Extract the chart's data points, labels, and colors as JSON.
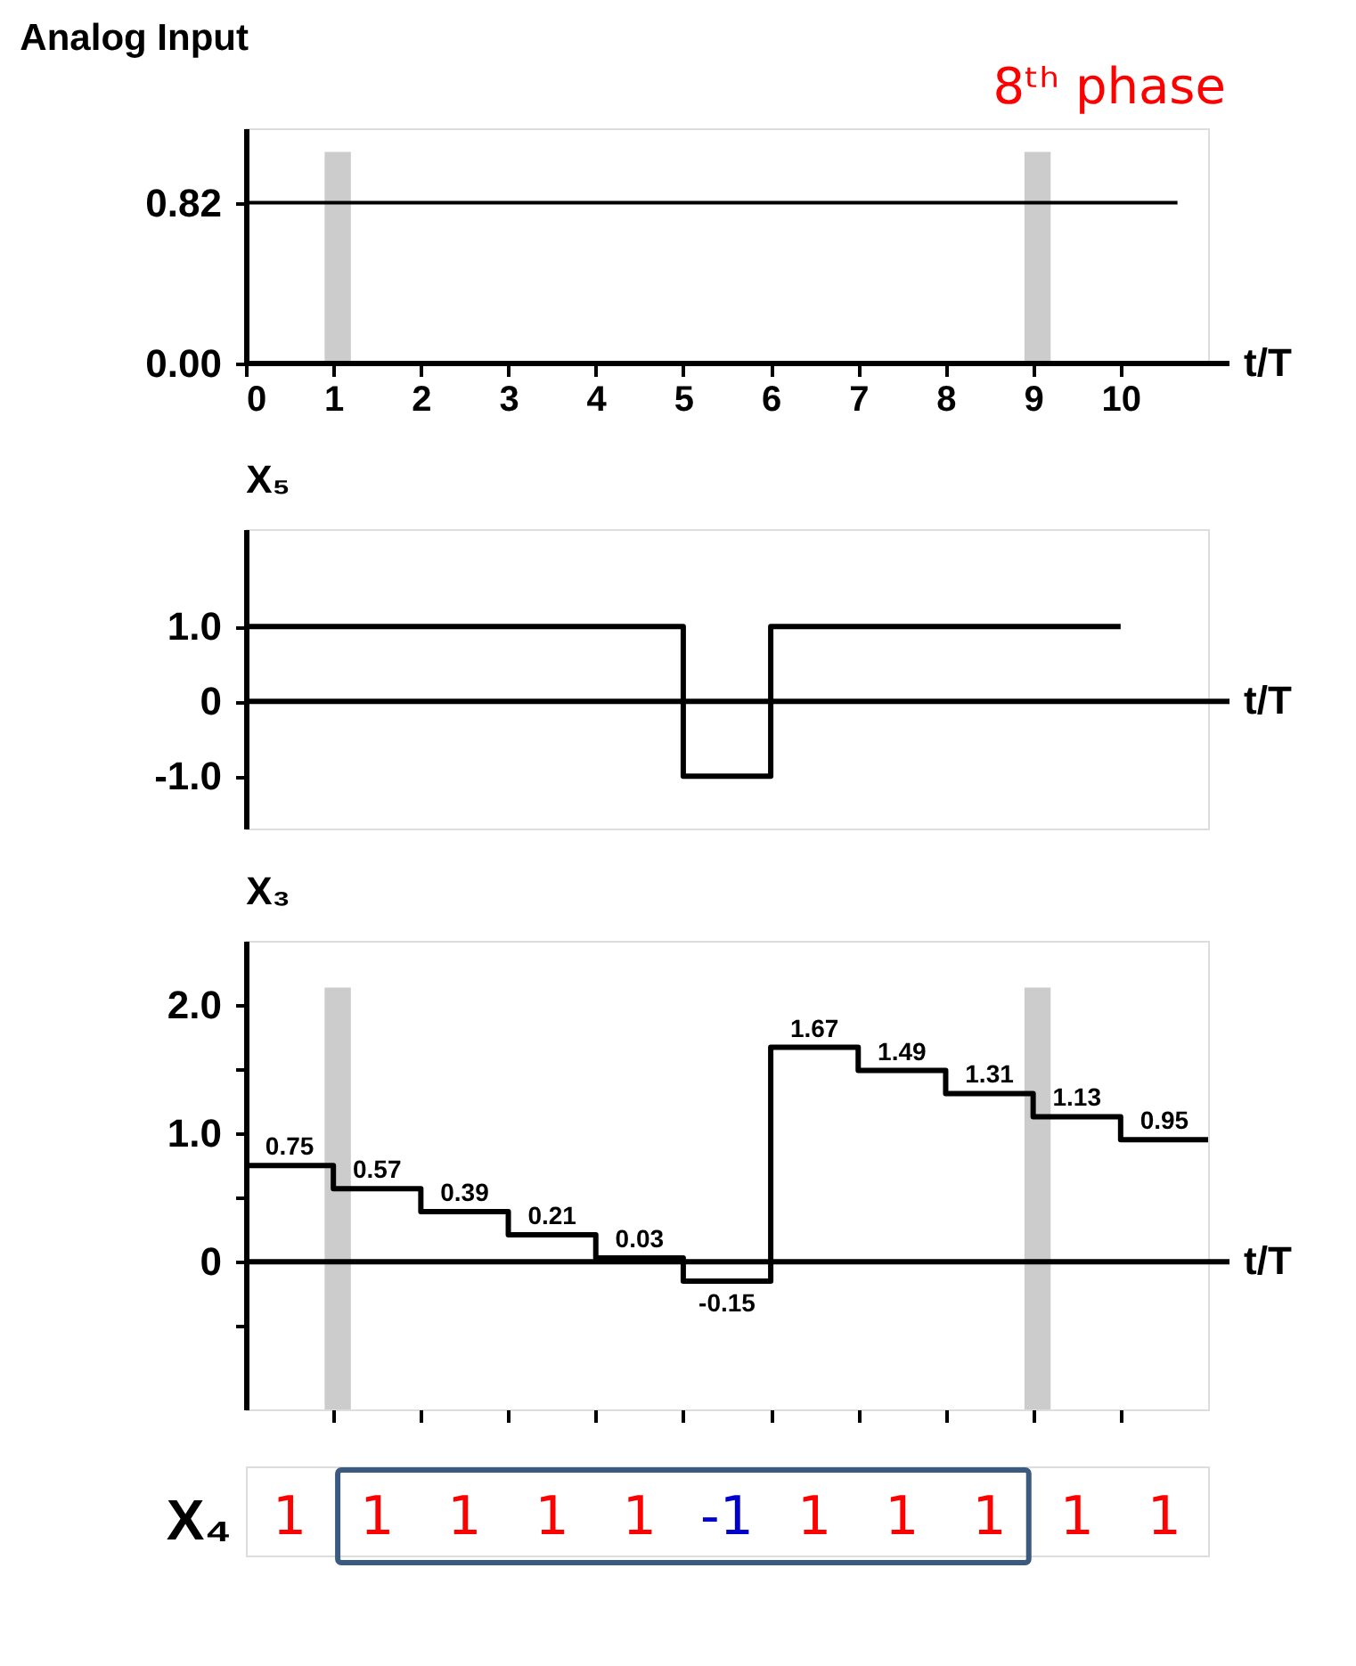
{
  "chart_data": [
    {
      "type": "line",
      "title": "Analog Input",
      "xlabel": "t/T",
      "annotations": [
        "8ᵗʰ phase"
      ],
      "x": [
        0,
        10.65
      ],
      "values": [
        0.82,
        0.82
      ],
      "color": "#000000",
      "xlim": [
        0,
        11
      ],
      "ylim": [
        0,
        1.2
      ],
      "xticks": [
        0,
        1,
        2,
        3,
        4,
        5,
        6,
        7,
        8,
        9,
        10
      ],
      "yticks": [
        {
          "value": 0,
          "label": "0.00"
        },
        0.82
      ],
      "bands": [
        {
          "axis": "x",
          "from": 0.9,
          "to": 1.2,
          "color": "#cccccc"
        },
        {
          "axis": "x",
          "from": 8.9,
          "to": 9.2,
          "color": "#cccccc"
        }
      ]
    },
    {
      "type": "step",
      "ylabel": "X₅",
      "xlabel": "t/T",
      "x": [
        0,
        1,
        2,
        3,
        4,
        5,
        6,
        7,
        8,
        9,
        10
      ],
      "values": [
        1,
        1,
        1,
        1,
        1,
        -1,
        1,
        1,
        1,
        1,
        1
      ],
      "color": "#000000",
      "xlim": [
        0,
        11
      ],
      "ylim": [
        -1.7,
        2.3
      ],
      "yticks": [
        {
          "value": 1,
          "label": "1.0"
        },
        0,
        {
          "value": -1,
          "label": "-1.0"
        }
      ],
      "tick_labels": "y"
    },
    {
      "type": "step",
      "ylabel": "X₃",
      "xlabel": "t/T",
      "x": [
        0,
        1,
        2,
        3,
        4,
        5,
        6,
        7,
        8,
        9,
        10,
        11
      ],
      "values": [
        0.75,
        0.57,
        0.39,
        0.21,
        0.03,
        -0.15,
        1.67,
        1.49,
        1.31,
        1.13,
        0.95,
        0.95
      ],
      "value_labels": [
        "0.75",
        "0.57",
        "0.39",
        "0.21",
        "0.03",
        "-0.15",
        "1.67",
        "1.49",
        "1.31",
        "1.13",
        "0.95",
        null
      ],
      "color": "#000000",
      "xlim": [
        0,
        11
      ],
      "ylim": [
        -1.15,
        2.5
      ],
      "xticks": [
        {
          "value": 1,
          "label": null
        },
        {
          "value": 2,
          "label": null
        },
        {
          "value": 3,
          "label": null
        },
        {
          "value": 4,
          "label": null
        },
        {
          "value": 5,
          "label": null
        },
        {
          "value": 6,
          "label": null
        },
        {
          "value": 7,
          "label": null
        },
        {
          "value": 8,
          "label": null
        },
        {
          "value": 9,
          "label": null
        },
        {
          "value": 10,
          "label": null
        }
      ],
      "yticks": [
        {
          "value": 2,
          "label": "2.0"
        },
        {
          "value": 1.5,
          "label": null
        },
        {
          "value": 1,
          "label": "1.0"
        },
        {
          "value": 0.5,
          "label": null
        },
        0,
        {
          "value": -0.5,
          "label": null
        }
      ],
      "bands": [
        {
          "axis": "x",
          "from": 0.9,
          "to": 1.2,
          "color": "#cccccc"
        },
        {
          "axis": "x",
          "from": 8.9,
          "to": 9.2,
          "color": "#cccccc"
        }
      ],
      "tick_labels": "y"
    },
    {
      "type": "other",
      "ylabel": "X₄",
      "categories": [
        "1",
        "1",
        "1",
        "1",
        "1",
        "-1",
        "1",
        "1",
        "1",
        "1",
        "1"
      ],
      "colors": [
        "#ff0000",
        "#ff0000",
        "#ff0000",
        "#ff0000",
        "#ff0000",
        "#0000cc",
        "#ff0000",
        "#ff0000",
        "#ff0000",
        "#ff0000",
        "#ff0000"
      ]
    }
  ]
}
